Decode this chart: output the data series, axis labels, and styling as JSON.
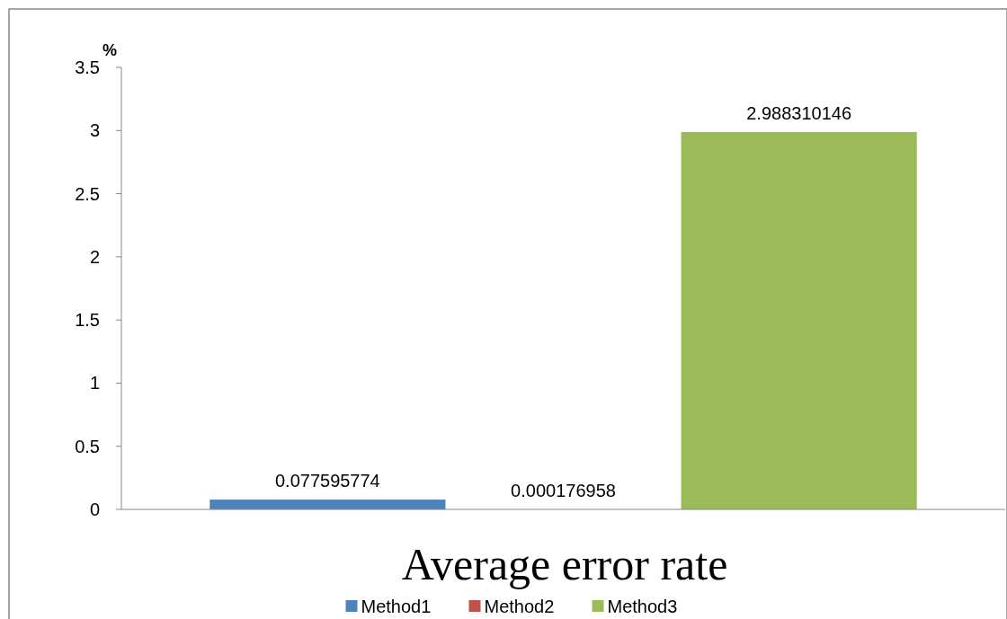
{
  "chart_data": {
    "type": "bar",
    "xlabel": "Average error rate",
    "ylabel": "%",
    "categories": [
      null
    ],
    "series": [
      {
        "name": "Method1",
        "color": "#4f81bd",
        "values": [
          0.077595774
        ]
      },
      {
        "name": "Method2",
        "color": "#c0504d",
        "values": [
          0.000176958
        ]
      },
      {
        "name": "Method3",
        "color": "#9bbb59",
        "values": [
          2.988310146
        ]
      }
    ],
    "ylim": [
      0,
      3.5
    ],
    "yticks": [
      0,
      0.5,
      1,
      1.5,
      2,
      2.5,
      3,
      3.5
    ],
    "grid": false,
    "legend": "bottom",
    "data_labels": true
  }
}
